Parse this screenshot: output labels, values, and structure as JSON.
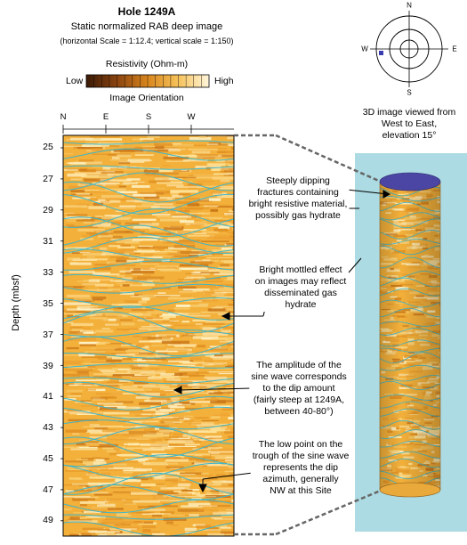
{
  "header": {
    "title": "Hole 1249A",
    "subtitle": "Static normalized RAB deep image",
    "scale_note": "(horizontal Scale = 1:12.4; vertical scale = 1:150)",
    "resistivity_label": "Resistivity (Ohm-m)",
    "low_label": "Low",
    "high_label": "High",
    "orientation_label": "Image Orientation"
  },
  "orientation_ticks": [
    "N",
    "E",
    "S",
    "W"
  ],
  "depth_axis": {
    "label": "Depth (mbsf)",
    "ticks": [
      "25",
      "27",
      "29",
      "31",
      "33",
      "35",
      "37",
      "39",
      "41",
      "43",
      "45",
      "47",
      "49"
    ]
  },
  "compass": {
    "n": "N",
    "e": "E",
    "s": "S",
    "w": "W"
  },
  "view_note": [
    "3D image viewed from",
    "West to East,",
    "elevation 15°"
  ],
  "annotations": [
    {
      "lines": [
        "Steeply dipping",
        "fractures containing",
        "bright resistive material,",
        "possibly gas hydrate"
      ]
    },
    {
      "lines": [
        "Bright mottled effect",
        "on images may reflect",
        "disseminated gas",
        "hydrate"
      ]
    },
    {
      "lines": [
        "The amplitude of the",
        "sine wave corresponds",
        "to the dip amount",
        "(fairly steep at 1249A,",
        "between 40-80°)"
      ]
    },
    {
      "lines": [
        "The low point on the",
        "trough of the sine wave",
        "represents the dip",
        "azimuth, generally",
        "NW at this Site"
      ]
    }
  ],
  "colors": {
    "image_base": "#f3b03a",
    "sine_wave": "#3fb6c9",
    "panel_bg": "#acdbe3",
    "cylinder_top": "#4b46a4",
    "compass_marker": "#3b3bb0"
  }
}
